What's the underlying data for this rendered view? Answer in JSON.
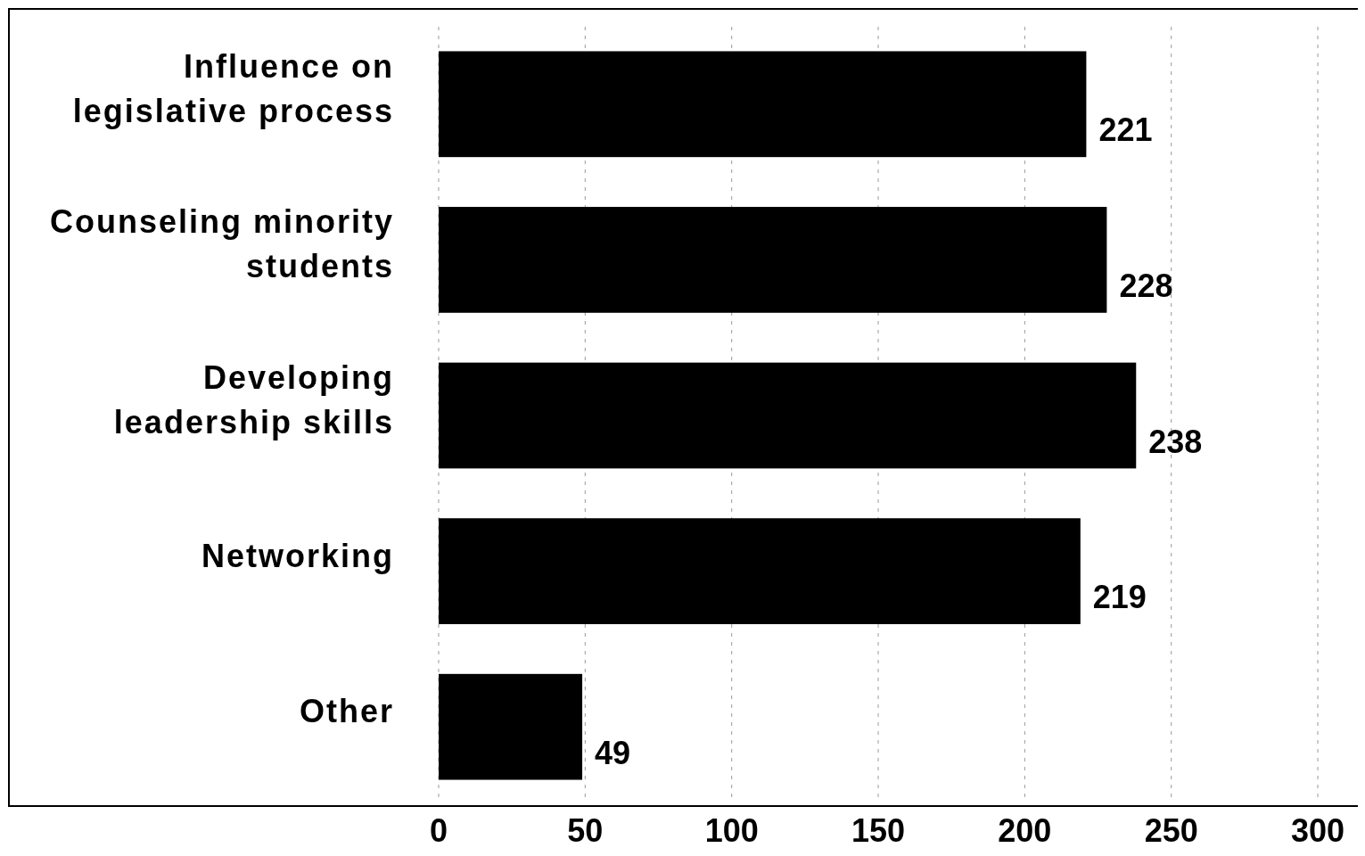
{
  "chart_data": {
    "type": "bar",
    "orientation": "horizontal",
    "categories": [
      "Influence on legislative process",
      "Counseling minority students",
      "Developing leadership skills",
      "Networking",
      "Other"
    ],
    "values": [
      221,
      228,
      238,
      219,
      49
    ],
    "color": "#000000",
    "xlim": [
      0,
      300
    ],
    "xticks": [
      0,
      50,
      100,
      150,
      200,
      250,
      300
    ],
    "data_labels": true,
    "grid": "x"
  }
}
